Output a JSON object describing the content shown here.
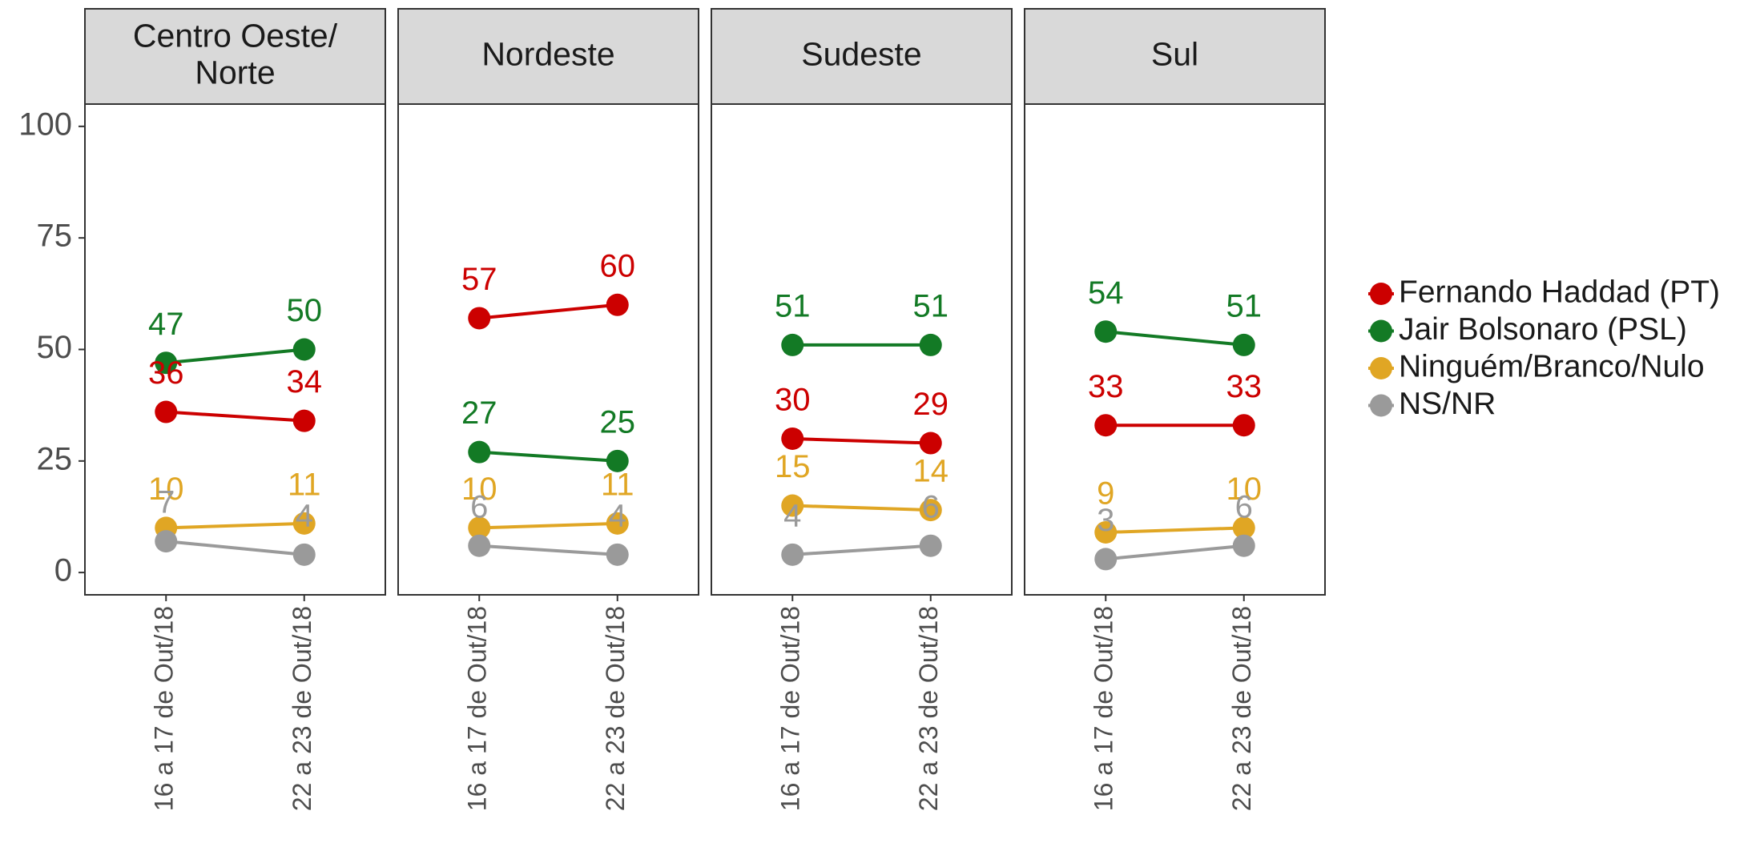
{
  "chart_data": {
    "type": "line",
    "facets": [
      "Centro Oeste/\nNorte",
      "Nordeste",
      "Sudeste",
      "Sul"
    ],
    "categories": [
      "16 a 17 de Out/18",
      "22 a 23 de Out/18"
    ],
    "ylim": [
      -5,
      105
    ],
    "yticks": [
      0,
      25,
      50,
      75,
      100
    ],
    "series": [
      {
        "name": "Fernando Haddad (PT)",
        "color": "#cc0000",
        "values": [
          [
            36,
            34
          ],
          [
            57,
            60
          ],
          [
            30,
            29
          ],
          [
            33,
            33
          ]
        ]
      },
      {
        "name": "Jair Bolsonaro (PSL)",
        "color": "#137a25",
        "values": [
          [
            47,
            50
          ],
          [
            27,
            25
          ],
          [
            51,
            51
          ],
          [
            54,
            51
          ]
        ]
      },
      {
        "name": "Ninguém/Branco/Nulo",
        "color": "#e0a624",
        "values": [
          [
            10,
            11
          ],
          [
            10,
            11
          ],
          [
            15,
            14
          ],
          [
            9,
            10
          ]
        ]
      },
      {
        "name": "NS/NR",
        "color": "#9a9a9a",
        "values": [
          [
            7,
            4
          ],
          [
            6,
            4
          ],
          [
            4,
            6
          ],
          [
            3,
            6
          ]
        ]
      }
    ]
  }
}
